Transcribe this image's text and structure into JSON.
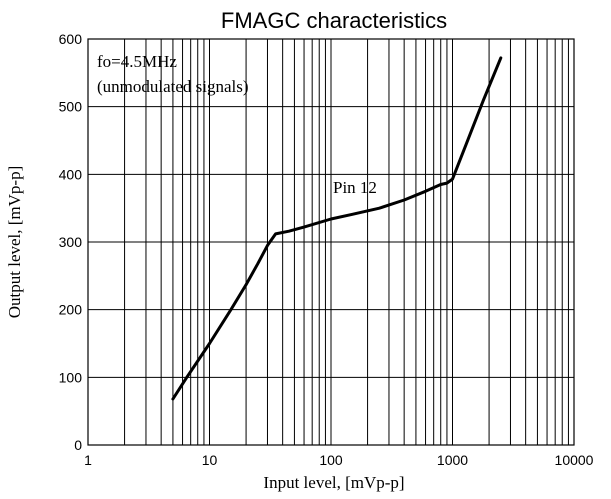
{
  "chart_data": {
    "type": "line",
    "title": "FMAGC characteristics",
    "xlabel": "Input level,  [mVp-p]",
    "ylabel": "Output level,  [mVp-p]",
    "x_scale": "log",
    "xlim": [
      1,
      10000
    ],
    "ylim": [
      0,
      600
    ],
    "x_ticks": [
      "1",
      "10",
      "100",
      "1000",
      "10000"
    ],
    "y_ticks": [
      "0",
      "100",
      "200",
      "300",
      "400",
      "500",
      "600"
    ],
    "grid": true,
    "annotations": [
      "fo=4.5MHz",
      "(unmodulated signals)",
      "Pin 12"
    ],
    "series": [
      {
        "x": [
          5,
          6.5,
          10,
          15,
          20,
          25,
          30,
          35,
          45,
          60,
          100,
          150,
          250,
          400,
          600,
          800,
          900,
          1000,
          1300,
          1800,
          2500
        ],
        "y": [
          68,
          100,
          150,
          200,
          237,
          268,
          295,
          312,
          316,
          322,
          334,
          341,
          350,
          362,
          375,
          385,
          387,
          393,
          445,
          510,
          572
        ]
      }
    ]
  }
}
